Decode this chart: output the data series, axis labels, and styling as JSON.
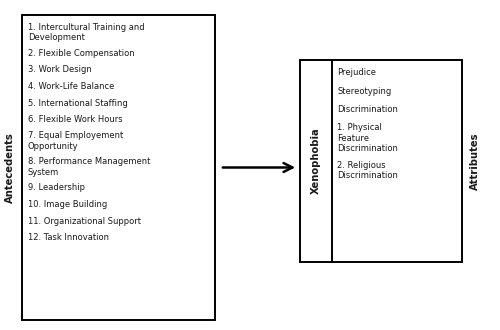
{
  "left_box_items": [
    "1. Intercultural Training and\nDevelopment",
    "2. Flexible Compensation",
    "3. Work Design",
    "4. Work-Life Balance",
    "5. International Staffing",
    "6. Flexible Work Hours",
    "7. Equal Employement\nOpportunity",
    "8. Performance Management\nSystem",
    "9. Leadership",
    "10. Image Building",
    "11. Organizational Support",
    "12. Task Innovation"
  ],
  "left_label": "Antecedents",
  "middle_label": "Xenophobia",
  "right_inner_items": [
    "Prejudice",
    "Stereotyping",
    "Discrimination",
    "1. Physical\nFeature\nDiscrimination",
    "2. Religious\nDiscrimination"
  ],
  "right_label": "Attributes",
  "bg_color": "#ffffff",
  "box_color": "#000000",
  "text_color": "#1a1a1a",
  "font_size": 6.0,
  "label_font_size": 7.2
}
